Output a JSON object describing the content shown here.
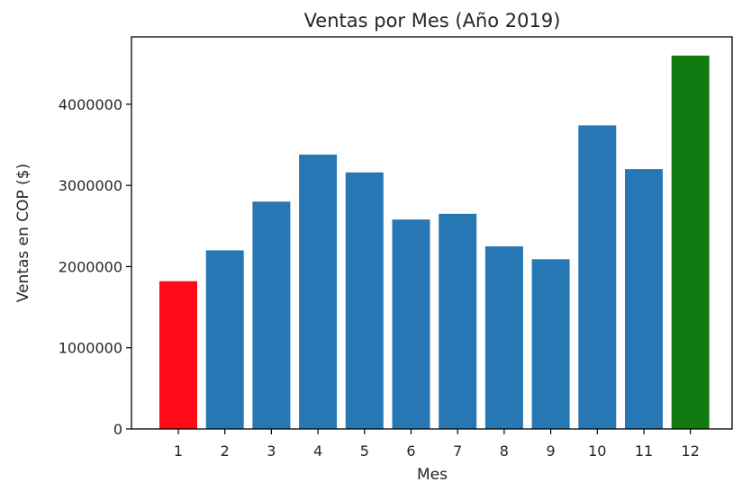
{
  "chart_data": {
    "type": "bar",
    "title": "Ventas por Mes (Año 2019)",
    "xlabel": "Mes",
    "ylabel": "Ventas en COP ($)",
    "categories": [
      "1",
      "2",
      "3",
      "4",
      "5",
      "6",
      "7",
      "8",
      "9",
      "10",
      "11",
      "12"
    ],
    "values": [
      1820000,
      2200000,
      2800000,
      3380000,
      3160000,
      2580000,
      2650000,
      2250000,
      2090000,
      3740000,
      3200000,
      4600000
    ],
    "bar_colors": [
      "#ff0b17",
      "#2677b4",
      "#2677b4",
      "#2677b4",
      "#2677b4",
      "#2677b4",
      "#2677b4",
      "#2677b4",
      "#2677b4",
      "#2677b4",
      "#2677b4",
      "#117b11"
    ],
    "yticks": [
      0,
      1000000,
      2000000,
      3000000,
      4000000
    ],
    "ytick_labels": [
      "0",
      "1000000",
      "2000000",
      "3000000",
      "4000000"
    ],
    "ylim": [
      0,
      4830000
    ],
    "grid": false,
    "legend": "none"
  }
}
